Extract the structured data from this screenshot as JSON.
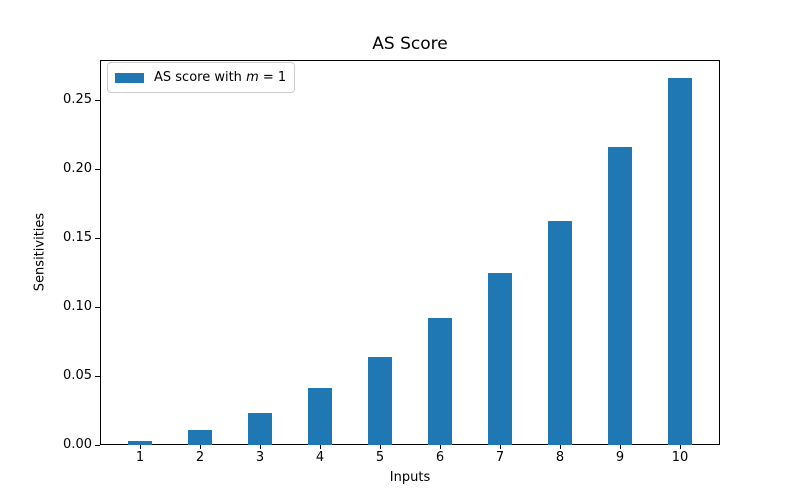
{
  "chart_data": {
    "type": "bar",
    "title": "AS Score",
    "xlabel": "Inputs",
    "ylabel": "Sensitivities",
    "categories": [
      "1",
      "2",
      "3",
      "4",
      "5",
      "6",
      "7",
      "8",
      "9",
      "10"
    ],
    "values": [
      0.003,
      0.011,
      0.023,
      0.041,
      0.064,
      0.092,
      0.125,
      0.162,
      0.216,
      0.266
    ],
    "ylim": [
      0,
      0.279
    ],
    "yticks": [
      0.0,
      0.05,
      0.1,
      0.15,
      0.2,
      0.25
    ],
    "ytick_labels": [
      "0.00",
      "0.05",
      "0.10",
      "0.15",
      "0.20",
      "0.25"
    ],
    "bar_color": "#1f77b4",
    "grid": false,
    "legend": {
      "position": "upper left",
      "entries": [
        {
          "label_prefix": "AS score with ",
          "label_var": "m",
          "label_suffix": " = 1",
          "label_full": "AS score with m = 1",
          "swatch_color": "#1f77b4"
        }
      ]
    }
  }
}
